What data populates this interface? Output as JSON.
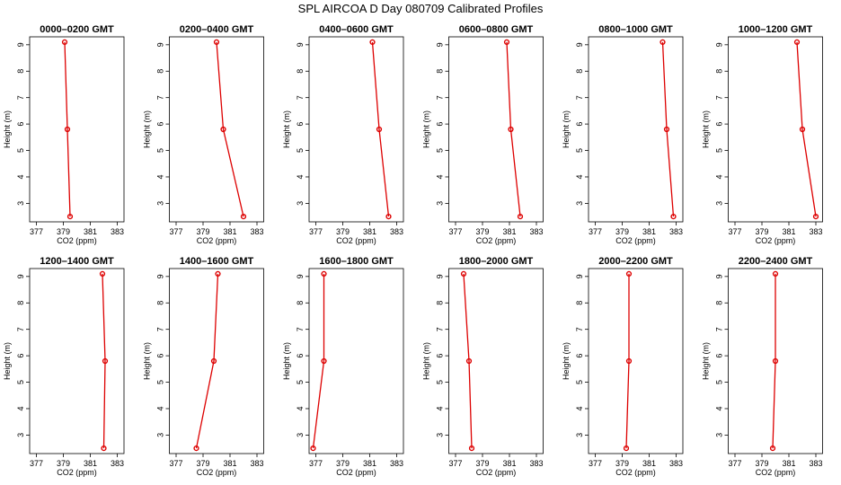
{
  "figure": {
    "title": "SPL AIRCOA D  Day 080709  Calibrated Profiles"
  },
  "chart_data": [
    {
      "type": "line",
      "title": "0000–0200 GMT",
      "xlabel": "CO2 (ppm)",
      "ylabel": "Height (m)",
      "xlim": [
        376.5,
        383.5
      ],
      "ylim": [
        2.3,
        9.3
      ],
      "xticks": [
        377,
        379,
        381,
        383
      ],
      "yticks": [
        3,
        4,
        5,
        6,
        7,
        8,
        9
      ],
      "color": "#dd0000",
      "grid": false,
      "points": [
        {
          "x": 379.5,
          "y": 2.5
        },
        {
          "x": 379.3,
          "y": 5.8
        },
        {
          "x": 379.1,
          "y": 9.1
        }
      ]
    },
    {
      "type": "line",
      "title": "0200–0400 GMT",
      "xlabel": "CO2 (ppm)",
      "ylabel": "Height (m)",
      "xlim": [
        376.5,
        383.5
      ],
      "ylim": [
        2.3,
        9.3
      ],
      "xticks": [
        377,
        379,
        381,
        383
      ],
      "yticks": [
        3,
        4,
        5,
        6,
        7,
        8,
        9
      ],
      "color": "#dd0000",
      "grid": false,
      "points": [
        {
          "x": 382.0,
          "y": 2.5
        },
        {
          "x": 380.5,
          "y": 5.8
        },
        {
          "x": 380.0,
          "y": 9.1
        }
      ]
    },
    {
      "type": "line",
      "title": "0400–0600 GMT",
      "xlabel": "CO2 (ppm)",
      "ylabel": "Height (m)",
      "xlim": [
        376.5,
        383.5
      ],
      "ylim": [
        2.3,
        9.3
      ],
      "xticks": [
        377,
        379,
        381,
        383
      ],
      "yticks": [
        3,
        4,
        5,
        6,
        7,
        8,
        9
      ],
      "color": "#dd0000",
      "grid": false,
      "points": [
        {
          "x": 382.4,
          "y": 2.5
        },
        {
          "x": 381.7,
          "y": 5.8
        },
        {
          "x": 381.2,
          "y": 9.1
        }
      ]
    },
    {
      "type": "line",
      "title": "0600–0800 GMT",
      "xlabel": "CO2 (ppm)",
      "ylabel": "Height (m)",
      "xlim": [
        376.5,
        383.5
      ],
      "ylim": [
        2.3,
        9.3
      ],
      "xticks": [
        377,
        379,
        381,
        383
      ],
      "yticks": [
        3,
        4,
        5,
        6,
        7,
        8,
        9
      ],
      "color": "#dd0000",
      "grid": false,
      "points": [
        {
          "x": 381.8,
          "y": 2.5
        },
        {
          "x": 381.1,
          "y": 5.8
        },
        {
          "x": 380.8,
          "y": 9.1
        }
      ]
    },
    {
      "type": "line",
      "title": "0800–1000 GMT",
      "xlabel": "CO2 (ppm)",
      "ylabel": "Height (m)",
      "xlim": [
        376.5,
        383.5
      ],
      "ylim": [
        2.3,
        9.3
      ],
      "xticks": [
        377,
        379,
        381,
        383
      ],
      "yticks": [
        3,
        4,
        5,
        6,
        7,
        8,
        9
      ],
      "color": "#dd0000",
      "grid": false,
      "points": [
        {
          "x": 382.8,
          "y": 2.5
        },
        {
          "x": 382.3,
          "y": 5.8
        },
        {
          "x": 382.0,
          "y": 9.1
        }
      ]
    },
    {
      "type": "line",
      "title": "1000–1200 GMT",
      "xlabel": "CO2 (ppm)",
      "ylabel": "Height (m)",
      "xlim": [
        376.5,
        383.5
      ],
      "ylim": [
        2.3,
        9.3
      ],
      "xticks": [
        377,
        379,
        381,
        383
      ],
      "yticks": [
        3,
        4,
        5,
        6,
        7,
        8,
        9
      ],
      "color": "#dd0000",
      "grid": false,
      "points": [
        {
          "x": 383.0,
          "y": 2.5
        },
        {
          "x": 382.0,
          "y": 5.8
        },
        {
          "x": 381.6,
          "y": 9.1
        }
      ]
    },
    {
      "type": "line",
      "title": "1200–1400 GMT",
      "xlabel": "CO2 (ppm)",
      "ylabel": "Height (m)",
      "xlim": [
        376.5,
        383.5
      ],
      "ylim": [
        2.3,
        9.3
      ],
      "xticks": [
        377,
        379,
        381,
        383
      ],
      "yticks": [
        3,
        4,
        5,
        6,
        7,
        8,
        9
      ],
      "color": "#dd0000",
      "grid": false,
      "points": [
        {
          "x": 382.0,
          "y": 2.5
        },
        {
          "x": 382.1,
          "y": 5.8
        },
        {
          "x": 381.9,
          "y": 9.1
        }
      ]
    },
    {
      "type": "line",
      "title": "1400–1600 GMT",
      "xlabel": "CO2 (ppm)",
      "ylabel": "Height (m)",
      "xlim": [
        376.5,
        383.5
      ],
      "ylim": [
        2.3,
        9.3
      ],
      "xticks": [
        377,
        379,
        381,
        383
      ],
      "yticks": [
        3,
        4,
        5,
        6,
        7,
        8,
        9
      ],
      "color": "#dd0000",
      "grid": false,
      "points": [
        {
          "x": 378.5,
          "y": 2.5
        },
        {
          "x": 379.8,
          "y": 5.8
        },
        {
          "x": 380.1,
          "y": 9.1
        }
      ]
    },
    {
      "type": "line",
      "title": "1600–1800 GMT",
      "xlabel": "CO2 (ppm)",
      "ylabel": "Height (m)",
      "xlim": [
        376.5,
        383.5
      ],
      "ylim": [
        2.3,
        9.3
      ],
      "xticks": [
        377,
        379,
        381,
        383
      ],
      "yticks": [
        3,
        4,
        5,
        6,
        7,
        8,
        9
      ],
      "color": "#dd0000",
      "grid": false,
      "points": [
        {
          "x": 376.8,
          "y": 2.5
        },
        {
          "x": 377.6,
          "y": 5.8
        },
        {
          "x": 377.6,
          "y": 9.1
        }
      ]
    },
    {
      "type": "line",
      "title": "1800–2000 GMT",
      "xlabel": "CO2 (ppm)",
      "ylabel": "Height (m)",
      "xlim": [
        376.5,
        383.5
      ],
      "ylim": [
        2.3,
        9.3
      ],
      "xticks": [
        377,
        379,
        381,
        383
      ],
      "yticks": [
        3,
        4,
        5,
        6,
        7,
        8,
        9
      ],
      "color": "#dd0000",
      "grid": false,
      "points": [
        {
          "x": 378.2,
          "y": 2.5
        },
        {
          "x": 378.0,
          "y": 5.8
        },
        {
          "x": 377.6,
          "y": 9.1
        }
      ]
    },
    {
      "type": "line",
      "title": "2000–2200 GMT",
      "xlabel": "CO2 (ppm)",
      "ylabel": "Height (m)",
      "xlim": [
        376.5,
        383.5
      ],
      "ylim": [
        2.3,
        9.3
      ],
      "xticks": [
        377,
        379,
        381,
        383
      ],
      "yticks": [
        3,
        4,
        5,
        6,
        7,
        8,
        9
      ],
      "color": "#dd0000",
      "grid": false,
      "points": [
        {
          "x": 379.3,
          "y": 2.5
        },
        {
          "x": 379.5,
          "y": 5.8
        },
        {
          "x": 379.5,
          "y": 9.1
        }
      ]
    },
    {
      "type": "line",
      "title": "2200–2400 GMT",
      "xlabel": "CO2 (ppm)",
      "ylabel": "Height (m)",
      "xlim": [
        376.5,
        383.5
      ],
      "ylim": [
        2.3,
        9.3
      ],
      "xticks": [
        377,
        379,
        381,
        383
      ],
      "yticks": [
        3,
        4,
        5,
        6,
        7,
        8,
        9
      ],
      "color": "#dd0000",
      "grid": false,
      "points": [
        {
          "x": 379.8,
          "y": 2.5
        },
        {
          "x": 380.0,
          "y": 5.8
        },
        {
          "x": 380.0,
          "y": 9.1
        }
      ]
    }
  ]
}
